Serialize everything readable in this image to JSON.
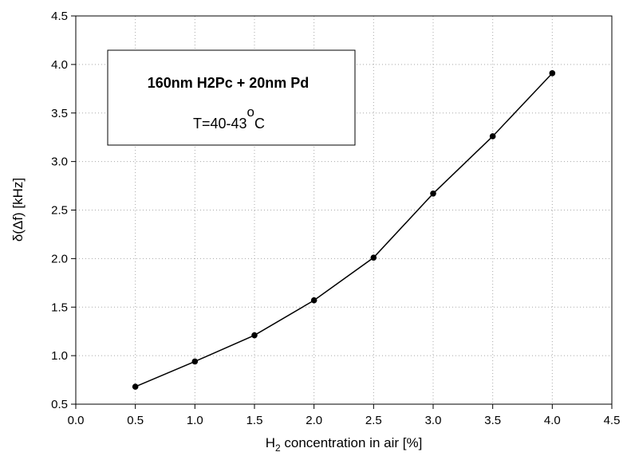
{
  "chart_data": {
    "type": "line",
    "title": "",
    "xlabel_main": "H",
    "xlabel_sub": "2",
    "xlabel_rest": " concentration in air [%]",
    "ylabel": "δ(Δf) [kHz]",
    "xlim": [
      0.0,
      4.5
    ],
    "ylim": [
      0.5,
      4.5
    ],
    "x_ticks": [
      "0.0",
      "0.5",
      "1.0",
      "1.5",
      "2.0",
      "2.5",
      "3.0",
      "3.5",
      "4.0",
      "4.5"
    ],
    "y_ticks": [
      "0.5",
      "1.0",
      "1.5",
      "2.0",
      "2.5",
      "3.0",
      "3.5",
      "4.0",
      "4.5"
    ],
    "grid": true,
    "series": [
      {
        "x": [
          0.5,
          1.0,
          1.5,
          2.0,
          2.5,
          3.0,
          3.5,
          4.0
        ],
        "y": [
          0.68,
          0.94,
          1.21,
          1.57,
          2.01,
          2.67,
          3.26,
          3.91
        ]
      }
    ],
    "legend_box": {
      "line1": "160nm H2Pc + 20nm Pd",
      "line2_text": "T=40-43",
      "line2_superscript": "o",
      "line2_unit": "C"
    },
    "line_color": "#000000",
    "marker_color": "#000000"
  }
}
